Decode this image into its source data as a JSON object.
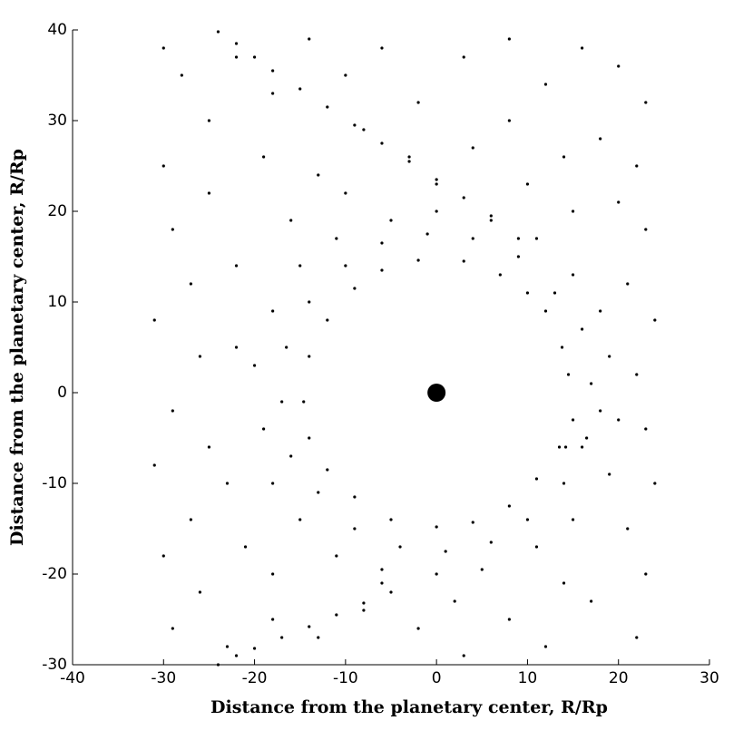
{
  "chart_data": {
    "type": "scatter",
    "xlabel": "Distance from the planetary center, R/Rp",
    "ylabel": "Distance from the planetary center, R/Rp",
    "xlim": [
      -40,
      30
    ],
    "xticks": [
      -40,
      -30,
      -20,
      -10,
      0,
      10,
      20,
      30
    ],
    "ylim": [
      -30,
      40
    ],
    "yticks": [
      -30,
      -20,
      -10,
      0,
      10,
      20,
      30,
      40
    ],
    "series": [
      {
        "color": "#000000",
        "marker_size": 1.6,
        "points": [
          [
            14.5,
            2
          ],
          [
            15,
            -3
          ],
          [
            13.8,
            5
          ],
          [
            14.2,
            -6
          ],
          [
            12,
            9
          ],
          [
            10,
            11
          ],
          [
            7,
            13
          ],
          [
            3,
            14.5
          ],
          [
            -2,
            14.6
          ],
          [
            -6,
            13.5
          ],
          [
            -9,
            11.5
          ],
          [
            -12,
            8
          ],
          [
            -14,
            4
          ],
          [
            -14.6,
            -1
          ],
          [
            -14,
            -5
          ],
          [
            -12,
            -8.5
          ],
          [
            -9,
            -11.5
          ],
          [
            -5,
            -14
          ],
          [
            0,
            -14.8
          ],
          [
            4,
            -14.3
          ],
          [
            8,
            -12.5
          ],
          [
            11,
            -9.5
          ],
          [
            13.5,
            -6
          ],
          [
            17,
            1
          ],
          [
            16.5,
            -5
          ],
          [
            16,
            7
          ],
          [
            13,
            11
          ],
          [
            9,
            15
          ],
          [
            4,
            17
          ],
          [
            -1,
            17.5
          ],
          [
            -6,
            16.5
          ],
          [
            -10,
            14
          ],
          [
            -14,
            10
          ],
          [
            -16.5,
            5
          ],
          [
            -17,
            -1
          ],
          [
            -16,
            -7
          ],
          [
            -13,
            -11
          ],
          [
            -9,
            -15
          ],
          [
            -4,
            -17
          ],
          [
            1,
            -17.5
          ],
          [
            6,
            -16.5
          ],
          [
            10,
            -14
          ],
          [
            14,
            -10
          ],
          [
            16,
            -6
          ],
          [
            18,
            -2
          ],
          [
            19,
            4
          ],
          [
            18,
            9
          ],
          [
            15,
            13
          ],
          [
            11,
            17
          ],
          [
            6,
            19
          ],
          [
            0,
            20
          ],
          [
            -5,
            19
          ],
          [
            -11,
            17
          ],
          [
            -15,
            14
          ],
          [
            -18,
            9
          ],
          [
            -20,
            3
          ],
          [
            -19,
            -4
          ],
          [
            -18,
            -10
          ],
          [
            -15,
            -14
          ],
          [
            -11,
            -18
          ],
          [
            -6,
            -19.5
          ],
          [
            0,
            -20
          ],
          [
            5,
            -19.5
          ],
          [
            11,
            -17
          ],
          [
            15,
            -14
          ],
          [
            19,
            -9
          ],
          [
            20,
            -3
          ],
          [
            -30,
            38
          ],
          [
            -28,
            35
          ],
          [
            -25,
            30
          ],
          [
            -30,
            25
          ],
          [
            -22,
            37
          ],
          [
            -18,
            33
          ],
          [
            -14,
            39
          ],
          [
            -10,
            35
          ],
          [
            -6,
            38
          ],
          [
            -2,
            32
          ],
          [
            3,
            37
          ],
          [
            8,
            39
          ],
          [
            12,
            34
          ],
          [
            16,
            38
          ],
          [
            20,
            36
          ],
          [
            23,
            32
          ],
          [
            22,
            25
          ],
          [
            18,
            28
          ],
          [
            14,
            26
          ],
          [
            8,
            30
          ],
          [
            4,
            27
          ],
          [
            -3,
            26
          ],
          [
            -8,
            29
          ],
          [
            -13,
            24
          ],
          [
            -19,
            26
          ],
          [
            -25,
            22
          ],
          [
            -29,
            18
          ],
          [
            -27,
            12
          ],
          [
            -31,
            8
          ],
          [
            -26,
            4
          ],
          [
            -29,
            -2
          ],
          [
            -31,
            -8
          ],
          [
            -25,
            -6
          ],
          [
            -27,
            -14
          ],
          [
            -30,
            -18
          ],
          [
            -26,
            -22
          ],
          [
            -29,
            -26
          ],
          [
            -23,
            -28
          ],
          [
            -18,
            -25
          ],
          [
            -13,
            -27
          ],
          [
            -8,
            -24
          ],
          [
            -2,
            -26
          ],
          [
            3,
            -29
          ],
          [
            8,
            -25
          ],
          [
            12,
            -28
          ],
          [
            17,
            -23
          ],
          [
            22,
            -27
          ],
          [
            23,
            -20
          ],
          [
            21,
            -15
          ],
          [
            24,
            -10
          ],
          [
            23,
            -4
          ],
          [
            22,
            2
          ],
          [
            24,
            8
          ],
          [
            21,
            12
          ],
          [
            23,
            18
          ],
          [
            20,
            21
          ],
          [
            -22,
            14
          ],
          [
            -21,
            -17
          ],
          [
            -22,
            5
          ],
          [
            -23,
            -10
          ],
          [
            10,
            23
          ],
          [
            -10,
            22
          ],
          [
            0,
            23
          ],
          [
            15,
            20
          ],
          [
            -16,
            19
          ],
          [
            -18,
            -20
          ],
          [
            14,
            -21
          ],
          [
            2,
            -23
          ],
          [
            -6,
            -21
          ],
          [
            -24,
            39.8
          ],
          [
            -22,
            38.5
          ],
          [
            -20,
            37
          ],
          [
            -18,
            35.5
          ],
          [
            -15,
            33.5
          ],
          [
            -12,
            31.5
          ],
          [
            -9,
            29.5
          ],
          [
            -6,
            27.5
          ],
          [
            -3,
            25.5
          ],
          [
            0,
            23.5
          ],
          [
            3,
            21.5
          ],
          [
            6,
            19.5
          ],
          [
            9,
            17
          ],
          [
            -24,
            -30
          ],
          [
            -22,
            -29
          ],
          [
            -20,
            -28.2
          ],
          [
            -17,
            -27
          ],
          [
            -14,
            -25.8
          ],
          [
            -11,
            -24.5
          ],
          [
            -8,
            -23.2
          ],
          [
            -5,
            -22
          ]
        ]
      },
      {
        "color": "#000000",
        "marker_size": 10,
        "points": [
          [
            0,
            0
          ]
        ]
      }
    ]
  }
}
